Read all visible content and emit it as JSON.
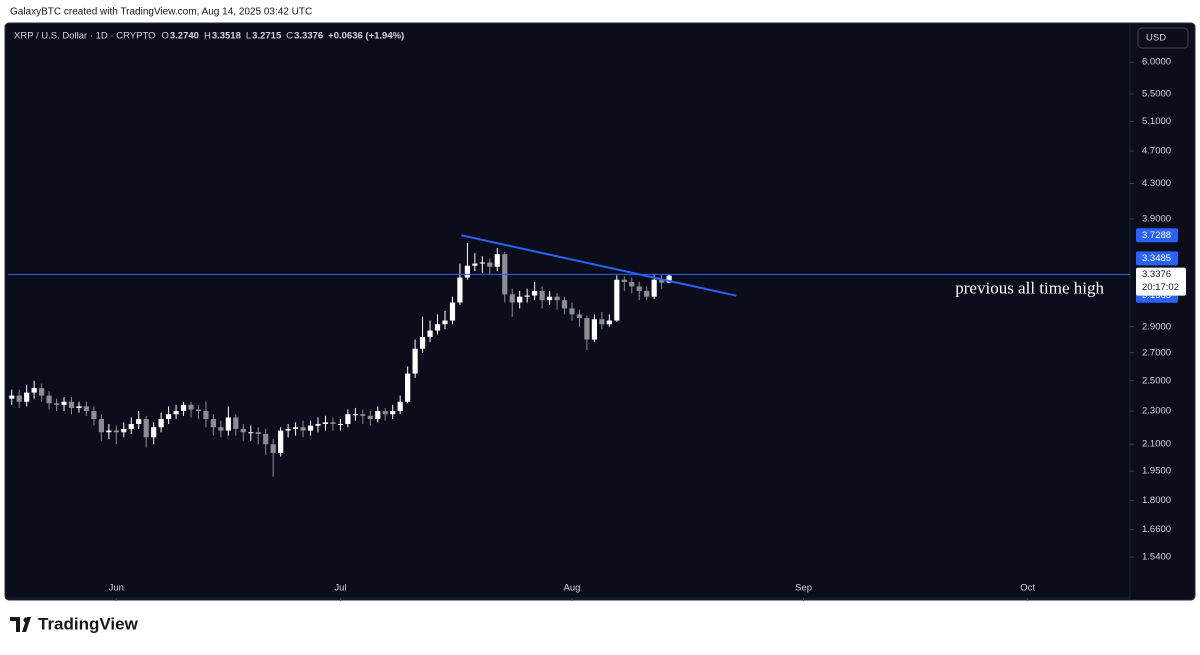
{
  "header": {
    "credit": "GalaxyBTC created with TradingView.com, Aug 14, 2025 03:42 UTC",
    "symbol": "XRP / U.S. Dollar · 1D · CRYPTO",
    "ohlc": [
      {
        "key": "O",
        "value": "3.2740"
      },
      {
        "key": "H",
        "value": "3.3518"
      },
      {
        "key": "L",
        "value": "3.2715"
      },
      {
        "key": "C",
        "value": "3.3376"
      }
    ],
    "change": "+0.0636 (+1.94%)",
    "currency": "USD",
    "brand": "TradingView"
  },
  "chart_data": {
    "type": "candlestick",
    "open": [
      2.38,
      2.4,
      2.36,
      2.42,
      2.45,
      2.4,
      2.35,
      2.34,
      2.36,
      2.32,
      2.33,
      2.3,
      2.25,
      2.17,
      2.18,
      2.17,
      2.19,
      2.22,
      2.25,
      2.14,
      2.2,
      2.25,
      2.28,
      2.3,
      2.34,
      2.31,
      2.3,
      2.25,
      2.2,
      2.18,
      2.26,
      2.19,
      2.17,
      2.17,
      2.16,
      2.1,
      2.05,
      2.18,
      2.19,
      2.2,
      2.18,
      2.21,
      2.22,
      2.23,
      2.22,
      2.22,
      2.28,
      2.28,
      2.27,
      2.25,
      2.3,
      2.28,
      2.3,
      2.36,
      2.55,
      2.73,
      2.82,
      2.87,
      2.92,
      2.95,
      3.1,
      3.32,
      3.43,
      3.45,
      3.46,
      3.42,
      3.54,
      3.17,
      3.1,
      3.15,
      3.16,
      3.2,
      3.12,
      3.15,
      3.12,
      3.05,
      3.0,
      2.97,
      2.8,
      2.96,
      2.92,
      2.95,
      3.3,
      3.28,
      3.24,
      3.2,
      3.15,
      3.3,
      3.274
    ],
    "high": [
      2.44,
      2.44,
      2.47,
      2.5,
      2.48,
      2.43,
      2.38,
      2.39,
      2.39,
      2.36,
      2.36,
      2.33,
      2.28,
      2.22,
      2.21,
      2.23,
      2.26,
      2.3,
      2.27,
      2.23,
      2.29,
      2.33,
      2.34,
      2.36,
      2.36,
      2.34,
      2.36,
      2.28,
      2.24,
      2.33,
      2.28,
      2.22,
      2.21,
      2.2,
      2.19,
      2.13,
      2.2,
      2.22,
      2.23,
      2.24,
      2.24,
      2.26,
      2.27,
      2.26,
      2.25,
      2.31,
      2.32,
      2.31,
      2.3,
      2.33,
      2.32,
      2.34,
      2.4,
      2.6,
      2.8,
      2.98,
      2.95,
      3.0,
      3.03,
      3.15,
      3.45,
      3.65,
      3.55,
      3.52,
      3.5,
      3.6,
      3.56,
      3.22,
      3.2,
      3.22,
      3.28,
      3.24,
      3.2,
      3.18,
      3.15,
      3.1,
      3.04,
      2.99,
      3.0,
      3.02,
      3.0,
      3.34,
      3.33,
      3.32,
      3.28,
      3.24,
      3.34,
      3.35,
      3.3518
    ],
    "low": [
      2.34,
      2.32,
      2.33,
      2.38,
      2.36,
      2.31,
      2.3,
      2.3,
      2.28,
      2.29,
      2.27,
      2.21,
      2.12,
      2.13,
      2.1,
      2.14,
      2.16,
      2.19,
      2.08,
      2.1,
      2.17,
      2.22,
      2.25,
      2.27,
      2.26,
      2.25,
      2.2,
      2.15,
      2.14,
      2.15,
      2.15,
      2.12,
      2.12,
      2.1,
      2.04,
      1.92,
      2.03,
      2.14,
      2.15,
      2.14,
      2.15,
      2.17,
      2.18,
      2.18,
      2.18,
      2.2,
      2.24,
      2.22,
      2.21,
      2.23,
      2.24,
      2.25,
      2.28,
      2.35,
      2.52,
      2.7,
      2.78,
      2.84,
      2.88,
      2.92,
      3.08,
      3.3,
      3.38,
      3.36,
      3.35,
      3.38,
      3.1,
      2.98,
      3.05,
      3.1,
      3.12,
      3.05,
      3.08,
      3.04,
      3.0,
      2.95,
      2.9,
      2.72,
      2.78,
      2.88,
      2.9,
      2.94,
      3.2,
      3.18,
      3.12,
      3.12,
      3.13,
      3.22,
      3.2715
    ],
    "close": [
      2.4,
      2.36,
      2.42,
      2.45,
      2.4,
      2.35,
      2.34,
      2.36,
      2.32,
      2.33,
      2.3,
      2.25,
      2.17,
      2.18,
      2.17,
      2.19,
      2.22,
      2.25,
      2.14,
      2.2,
      2.25,
      2.28,
      2.3,
      2.34,
      2.31,
      2.3,
      2.25,
      2.2,
      2.18,
      2.26,
      2.19,
      2.17,
      2.17,
      2.16,
      2.1,
      2.05,
      2.18,
      2.19,
      2.2,
      2.18,
      2.21,
      2.22,
      2.23,
      2.22,
      2.22,
      2.28,
      2.28,
      2.27,
      2.25,
      2.3,
      2.28,
      2.3,
      2.36,
      2.55,
      2.73,
      2.82,
      2.87,
      2.92,
      2.95,
      3.1,
      3.32,
      3.43,
      3.45,
      3.46,
      3.42,
      3.54,
      3.17,
      3.1,
      3.15,
      3.16,
      3.2,
      3.12,
      3.15,
      3.12,
      3.05,
      3.0,
      2.97,
      2.8,
      2.96,
      2.92,
      2.95,
      3.3,
      3.28,
      3.24,
      3.2,
      3.15,
      3.3,
      3.274,
      3.3376
    ],
    "up_color": "#ffffff",
    "down_color": "#8a8d96",
    "xlim": [
      -0.5,
      149.7
    ],
    "xticks": [
      {
        "value": 14,
        "label": "Jun"
      },
      {
        "value": 44,
        "label": "Jul"
      },
      {
        "value": 75,
        "label": "Aug"
      },
      {
        "value": 106,
        "label": "Sep"
      },
      {
        "value": 136,
        "label": "Oct"
      }
    ],
    "ylim": [
      1.376,
      6.61
    ],
    "log_y": true,
    "yticks": [
      {
        "value": 1.54,
        "label": "1.5400"
      },
      {
        "value": 1.66,
        "label": "1.6600"
      },
      {
        "value": 1.8,
        "label": "1.8000"
      },
      {
        "value": 1.95,
        "label": "1.9500"
      },
      {
        "value": 2.1,
        "label": "2.1000"
      },
      {
        "value": 2.3,
        "label": "2.3000"
      },
      {
        "value": 2.5,
        "label": "2.5000"
      },
      {
        "value": 2.7,
        "label": "2.7000"
      },
      {
        "value": 2.9,
        "label": "2.9000"
      },
      {
        "value": 3.9,
        "label": "3.9000"
      },
      {
        "value": 4.3,
        "label": "4.3000"
      },
      {
        "value": 4.7,
        "label": "4.7000"
      },
      {
        "value": 5.1,
        "label": "5.1000"
      },
      {
        "value": 5.5,
        "label": "5.5000"
      },
      {
        "value": 6,
        "label": "6.0000"
      }
    ],
    "horizontal_line": {
      "value": 3.3485,
      "color": "#2962ff",
      "annotation": "previous all time high"
    },
    "trendline": {
      "x": [
        60.2,
        97
      ],
      "y": [
        3.7288,
        3.1583
      ],
      "color": "#2962ff"
    },
    "last_price": 3.3376,
    "countdown": "20:17:02"
  }
}
